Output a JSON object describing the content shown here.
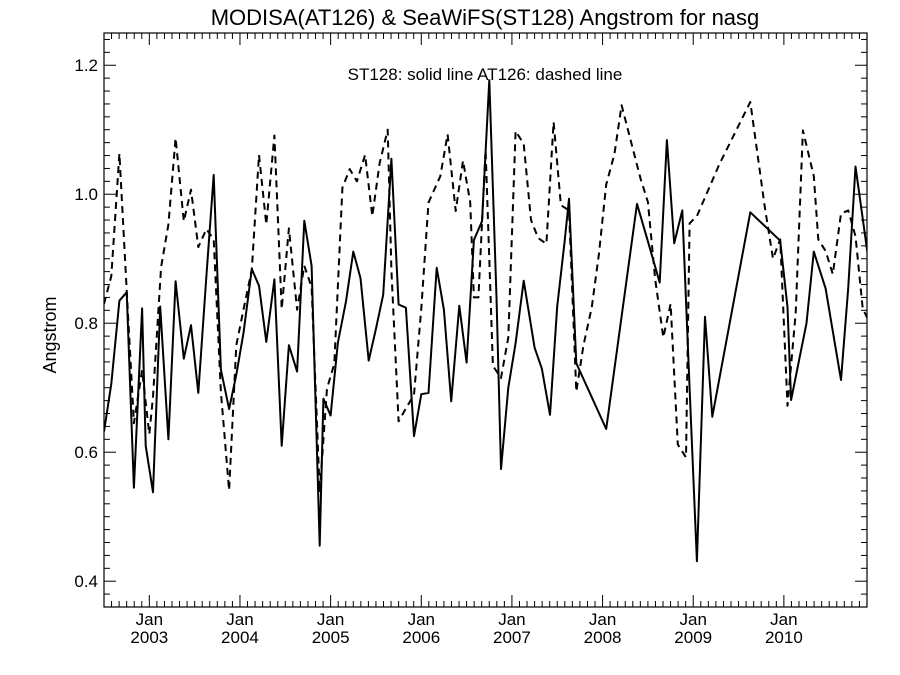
{
  "chart_data": {
    "type": "line",
    "title": "MODISA(AT126) & SeaWiFS(ST128)  Angstrom for nasg",
    "ylabel": "Angstrom",
    "annotation": "ST128: solid line   AT126: dashed line",
    "ylim": [
      0.36,
      1.25
    ],
    "xlim": [
      2002.5,
      2010.917
    ],
    "yticks": [
      0.4,
      0.6,
      0.8,
      1.0,
      1.2
    ],
    "ytick_labels": [
      "0.4",
      "0.6",
      "0.8",
      "1.0",
      "1.2"
    ],
    "xticks": [
      2003.0,
      2004.0,
      2005.0,
      2006.0,
      2007.0,
      2008.0,
      2009.0,
      2010.0
    ],
    "xtick_month_labels": [
      "Jan",
      "Jan",
      "Jan",
      "Jan",
      "Jan",
      "Jan",
      "Jan",
      "Jan"
    ],
    "xtick_year_labels": [
      "2003",
      "2004",
      "2005",
      "2006",
      "2007",
      "2008",
      "2009",
      "2010"
    ],
    "grid": false,
    "series": [
      {
        "name": "ST128",
        "style": "solid",
        "color": "#000000",
        "points": [
          [
            2002.5,
            0.632
          ],
          [
            2002.58,
            0.706
          ],
          [
            2002.67,
            0.835
          ],
          [
            2002.75,
            0.848
          ],
          [
            2002.83,
            0.545
          ],
          [
            2002.92,
            0.823
          ],
          [
            2002.96,
            0.61
          ],
          [
            2003.04,
            0.538
          ],
          [
            2003.12,
            0.826
          ],
          [
            2003.21,
            0.62
          ],
          [
            2003.29,
            0.865
          ],
          [
            2003.38,
            0.745
          ],
          [
            2003.46,
            0.797
          ],
          [
            2003.54,
            0.692
          ],
          [
            2003.63,
            0.873
          ],
          [
            2003.71,
            1.03
          ],
          [
            2003.79,
            0.728
          ],
          [
            2003.88,
            0.667
          ],
          [
            2003.96,
            0.72
          ],
          [
            2004.04,
            0.786
          ],
          [
            2004.13,
            0.884
          ],
          [
            2004.21,
            0.858
          ],
          [
            2004.29,
            0.771
          ],
          [
            2004.38,
            0.868
          ],
          [
            2004.46,
            0.61
          ],
          [
            2004.54,
            0.766
          ],
          [
            2004.63,
            0.725
          ],
          [
            2004.71,
            0.959
          ],
          [
            2004.79,
            0.889
          ],
          [
            2004.88,
            0.455
          ],
          [
            2004.92,
            0.683
          ],
          [
            2005.0,
            0.657
          ],
          [
            2005.08,
            0.77
          ],
          [
            2005.17,
            0.834
          ],
          [
            2005.25,
            0.911
          ],
          [
            2005.33,
            0.87
          ],
          [
            2005.42,
            0.742
          ],
          [
            2005.5,
            0.791
          ],
          [
            2005.58,
            0.844
          ],
          [
            2005.67,
            1.055
          ],
          [
            2005.75,
            0.829
          ],
          [
            2005.83,
            0.824
          ],
          [
            2005.92,
            0.625
          ],
          [
            2006.0,
            0.69
          ],
          [
            2006.08,
            0.692
          ],
          [
            2006.17,
            0.886
          ],
          [
            2006.25,
            0.821
          ],
          [
            2006.33,
            0.679
          ],
          [
            2006.42,
            0.827
          ],
          [
            2006.5,
            0.739
          ],
          [
            2006.58,
            0.929
          ],
          [
            2006.67,
            0.958
          ],
          [
            2006.75,
            1.177
          ],
          [
            2006.83,
            0.84
          ],
          [
            2006.88,
            0.574
          ],
          [
            2006.96,
            0.7
          ],
          [
            2007.04,
            0.769
          ],
          [
            2007.13,
            0.866
          ],
          [
            2007.25,
            0.762
          ],
          [
            2007.33,
            0.73
          ],
          [
            2007.42,
            0.658
          ],
          [
            2007.5,
            0.826
          ],
          [
            2007.58,
            0.925
          ],
          [
            2007.63,
            0.993
          ],
          [
            2007.71,
            0.738
          ],
          [
            2008.04,
            0.636
          ],
          [
            2008.38,
            0.985
          ],
          [
            2008.5,
            0.927
          ],
          [
            2008.63,
            0.863
          ],
          [
            2008.71,
            1.084
          ],
          [
            2008.79,
            0.924
          ],
          [
            2008.88,
            0.975
          ],
          [
            2008.96,
            0.699
          ],
          [
            2009.04,
            0.431
          ],
          [
            2009.13,
            0.81
          ],
          [
            2009.21,
            0.655
          ],
          [
            2009.63,
            0.972
          ],
          [
            2009.96,
            0.928
          ],
          [
            2010.04,
            0.825
          ],
          [
            2010.08,
            0.681
          ],
          [
            2010.25,
            0.8
          ],
          [
            2010.33,
            0.911
          ],
          [
            2010.46,
            0.854
          ],
          [
            2010.63,
            0.712
          ],
          [
            2010.71,
            0.854
          ],
          [
            2010.79,
            1.043
          ],
          [
            2010.92,
            0.911
          ]
        ]
      },
      {
        "name": "AT126",
        "style": "dashed",
        "color": "#000000",
        "points": [
          [
            2002.5,
            0.83
          ],
          [
            2002.58,
            0.873
          ],
          [
            2002.67,
            1.063
          ],
          [
            2002.75,
            0.851
          ],
          [
            2002.83,
            0.645
          ],
          [
            2002.92,
            0.727
          ],
          [
            2003.0,
            0.628
          ],
          [
            2003.04,
            0.686
          ],
          [
            2003.13,
            0.887
          ],
          [
            2003.21,
            0.953
          ],
          [
            2003.29,
            1.087
          ],
          [
            2003.38,
            0.958
          ],
          [
            2003.46,
            1.007
          ],
          [
            2003.54,
            0.918
          ],
          [
            2003.63,
            0.946
          ],
          [
            2003.71,
            0.93
          ],
          [
            2003.79,
            0.693
          ],
          [
            2003.88,
            0.541
          ],
          [
            2003.96,
            0.766
          ],
          [
            2004.04,
            0.822
          ],
          [
            2004.13,
            0.883
          ],
          [
            2004.21,
            1.061
          ],
          [
            2004.29,
            0.953
          ],
          [
            2004.38,
            1.091
          ],
          [
            2004.46,
            0.822
          ],
          [
            2004.54,
            0.947
          ],
          [
            2004.63,
            0.821
          ],
          [
            2004.71,
            0.889
          ],
          [
            2004.79,
            0.856
          ],
          [
            2004.88,
            0.538
          ],
          [
            2004.96,
            0.699
          ],
          [
            2005.04,
            0.737
          ],
          [
            2005.13,
            1.01
          ],
          [
            2005.21,
            1.039
          ],
          [
            2005.29,
            1.02
          ],
          [
            2005.38,
            1.061
          ],
          [
            2005.46,
            0.966
          ],
          [
            2005.54,
            1.048
          ],
          [
            2005.63,
            1.1
          ],
          [
            2005.67,
            0.882
          ],
          [
            2005.75,
            0.648
          ],
          [
            2005.83,
            0.668
          ],
          [
            2005.92,
            0.689
          ],
          [
            2006.0,
            0.823
          ],
          [
            2006.08,
            0.987
          ],
          [
            2006.21,
            1.028
          ],
          [
            2006.29,
            1.093
          ],
          [
            2006.38,
            0.974
          ],
          [
            2006.46,
            1.052
          ],
          [
            2006.54,
            0.988
          ],
          [
            2006.58,
            0.84
          ],
          [
            2006.63,
            0.84
          ],
          [
            2006.71,
            1.069
          ],
          [
            2006.79,
            0.734
          ],
          [
            2006.88,
            0.715
          ],
          [
            2006.96,
            0.778
          ],
          [
            2007.04,
            1.098
          ],
          [
            2007.13,
            1.078
          ],
          [
            2007.21,
            0.96
          ],
          [
            2007.29,
            0.932
          ],
          [
            2007.38,
            0.923
          ],
          [
            2007.46,
            1.112
          ],
          [
            2007.54,
            0.983
          ],
          [
            2007.63,
            0.975
          ],
          [
            2007.71,
            0.694
          ],
          [
            2007.79,
            0.766
          ],
          [
            2007.88,
            0.824
          ],
          [
            2007.96,
            0.907
          ],
          [
            2008.04,
            1.015
          ],
          [
            2008.13,
            1.062
          ],
          [
            2008.21,
            1.138
          ],
          [
            2008.42,
            1.024
          ],
          [
            2008.5,
            0.988
          ],
          [
            2008.58,
            0.868
          ],
          [
            2008.67,
            0.778
          ],
          [
            2008.75,
            0.83
          ],
          [
            2008.83,
            0.612
          ],
          [
            2008.92,
            0.592
          ],
          [
            2008.96,
            0.955
          ],
          [
            2009.04,
            0.966
          ],
          [
            2009.29,
            1.047
          ],
          [
            2009.63,
            1.143
          ],
          [
            2009.79,
            0.98
          ],
          [
            2009.88,
            0.9
          ],
          [
            2009.96,
            0.93
          ],
          [
            2010.04,
            0.672
          ],
          [
            2010.13,
            0.816
          ],
          [
            2010.21,
            1.099
          ],
          [
            2010.33,
            1.028
          ],
          [
            2010.38,
            0.93
          ],
          [
            2010.46,
            0.912
          ],
          [
            2010.54,
            0.876
          ],
          [
            2010.63,
            0.97
          ],
          [
            2010.71,
            0.975
          ],
          [
            2010.79,
            0.935
          ],
          [
            2010.87,
            0.823
          ],
          [
            2010.92,
            0.808
          ]
        ]
      }
    ]
  }
}
